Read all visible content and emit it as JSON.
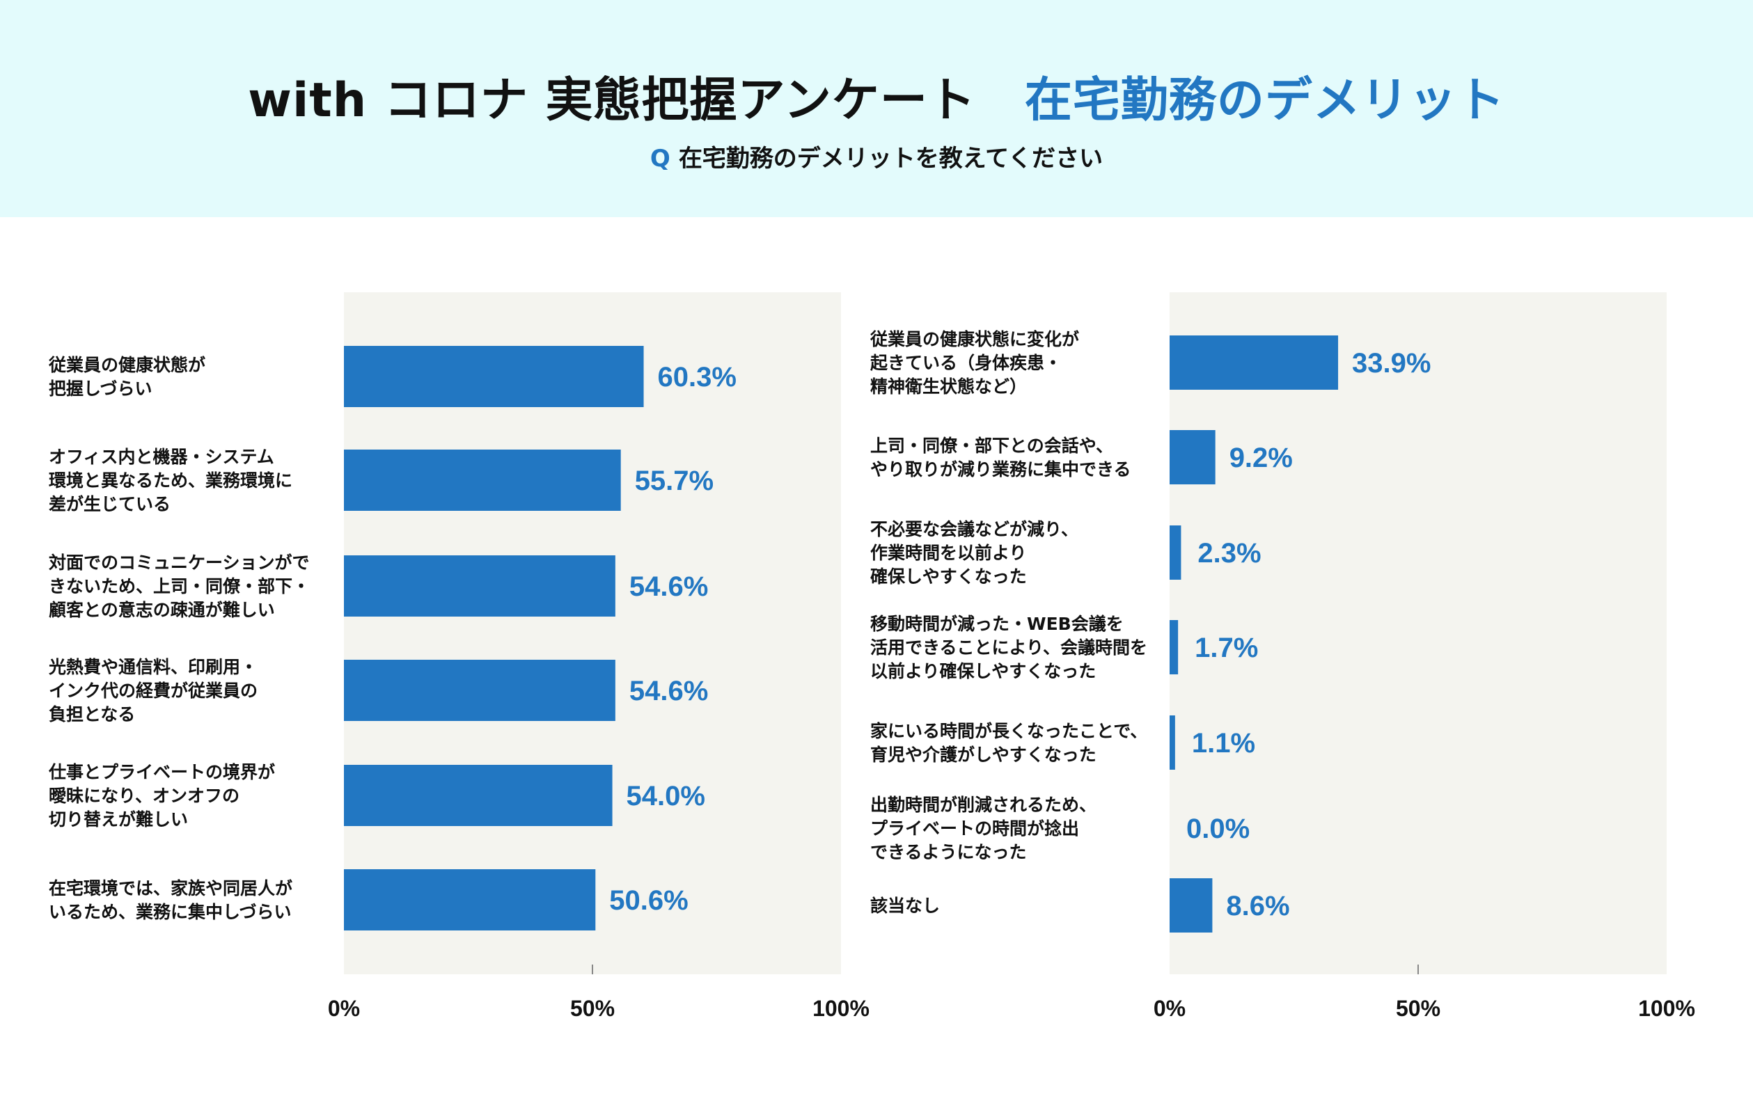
{
  "header": {
    "title_main": "with コロナ 実態把握アンケート",
    "title_accent": "在宅勤務のデメリット",
    "question_mark": "Q",
    "question": "在宅勤務のデメリットを教えてください"
  },
  "colors": {
    "bar": "#2277c2",
    "plot_bg": "#f4f4ef",
    "header_bg": "#e3fbfc",
    "accent": "#2277c2"
  },
  "chart_data": [
    {
      "type": "bar",
      "orientation": "horizontal",
      "xlim": [
        0,
        100
      ],
      "xticks": [
        "0%",
        "50%",
        "100%"
      ],
      "categories": [
        [
          "従業員の健康状態が",
          "把握しづらい"
        ],
        [
          "オフィス内と機器・システム",
          "環境と異なるため、業務環境に",
          "差が生じている"
        ],
        [
          "対面でのコミュニケーションがで",
          "きないため、上司・同僚・部下・",
          "顧客との意志の疎通が難しい"
        ],
        [
          "光熱費や通信料、印刷用・",
          "インク代の経費が従業員の",
          "負担となる"
        ],
        [
          "仕事とプライベートの境界が",
          "曖昧になり、オンオフの",
          "切り替えが難しい"
        ],
        [
          "在宅環境では、家族や同居人が",
          "いるため、業務に集中しづらい"
        ]
      ],
      "values": [
        60.3,
        55.7,
        54.6,
        54.6,
        54.0,
        50.6
      ],
      "value_labels": [
        "60.3%",
        "55.7%",
        "54.6%",
        "54.6%",
        "54.0%",
        "50.6%"
      ]
    },
    {
      "type": "bar",
      "orientation": "horizontal",
      "xlim": [
        0,
        100
      ],
      "xticks": [
        "0%",
        "50%",
        "100%"
      ],
      "categories": [
        [
          "従業員の健康状態に変化が",
          "起きている（身体疾患・",
          "精神衛生状態など）"
        ],
        [
          "上司・同僚・部下との会話や、",
          "やり取りが減り業務に集中できる"
        ],
        [
          "不必要な会議などが減り、",
          "作業時間を以前より",
          "確保しやすくなった"
        ],
        [
          "移動時間が減った・WEB会議を",
          "活用できることにより、会議時間を",
          "以前より確保しやすくなった"
        ],
        [
          "家にいる時間が長くなったことで、",
          "育児や介護がしやすくなった"
        ],
        [
          "出勤時間が削減されるため、",
          "プライベートの時間が捻出",
          "できるようになった"
        ],
        [
          "該当なし"
        ]
      ],
      "values": [
        33.9,
        9.2,
        2.3,
        1.7,
        1.1,
        0.0,
        8.6
      ],
      "value_labels": [
        "33.9%",
        "9.2%",
        "2.3%",
        "1.7%",
        "1.1%",
        "0.0%",
        "8.6%"
      ]
    }
  ]
}
